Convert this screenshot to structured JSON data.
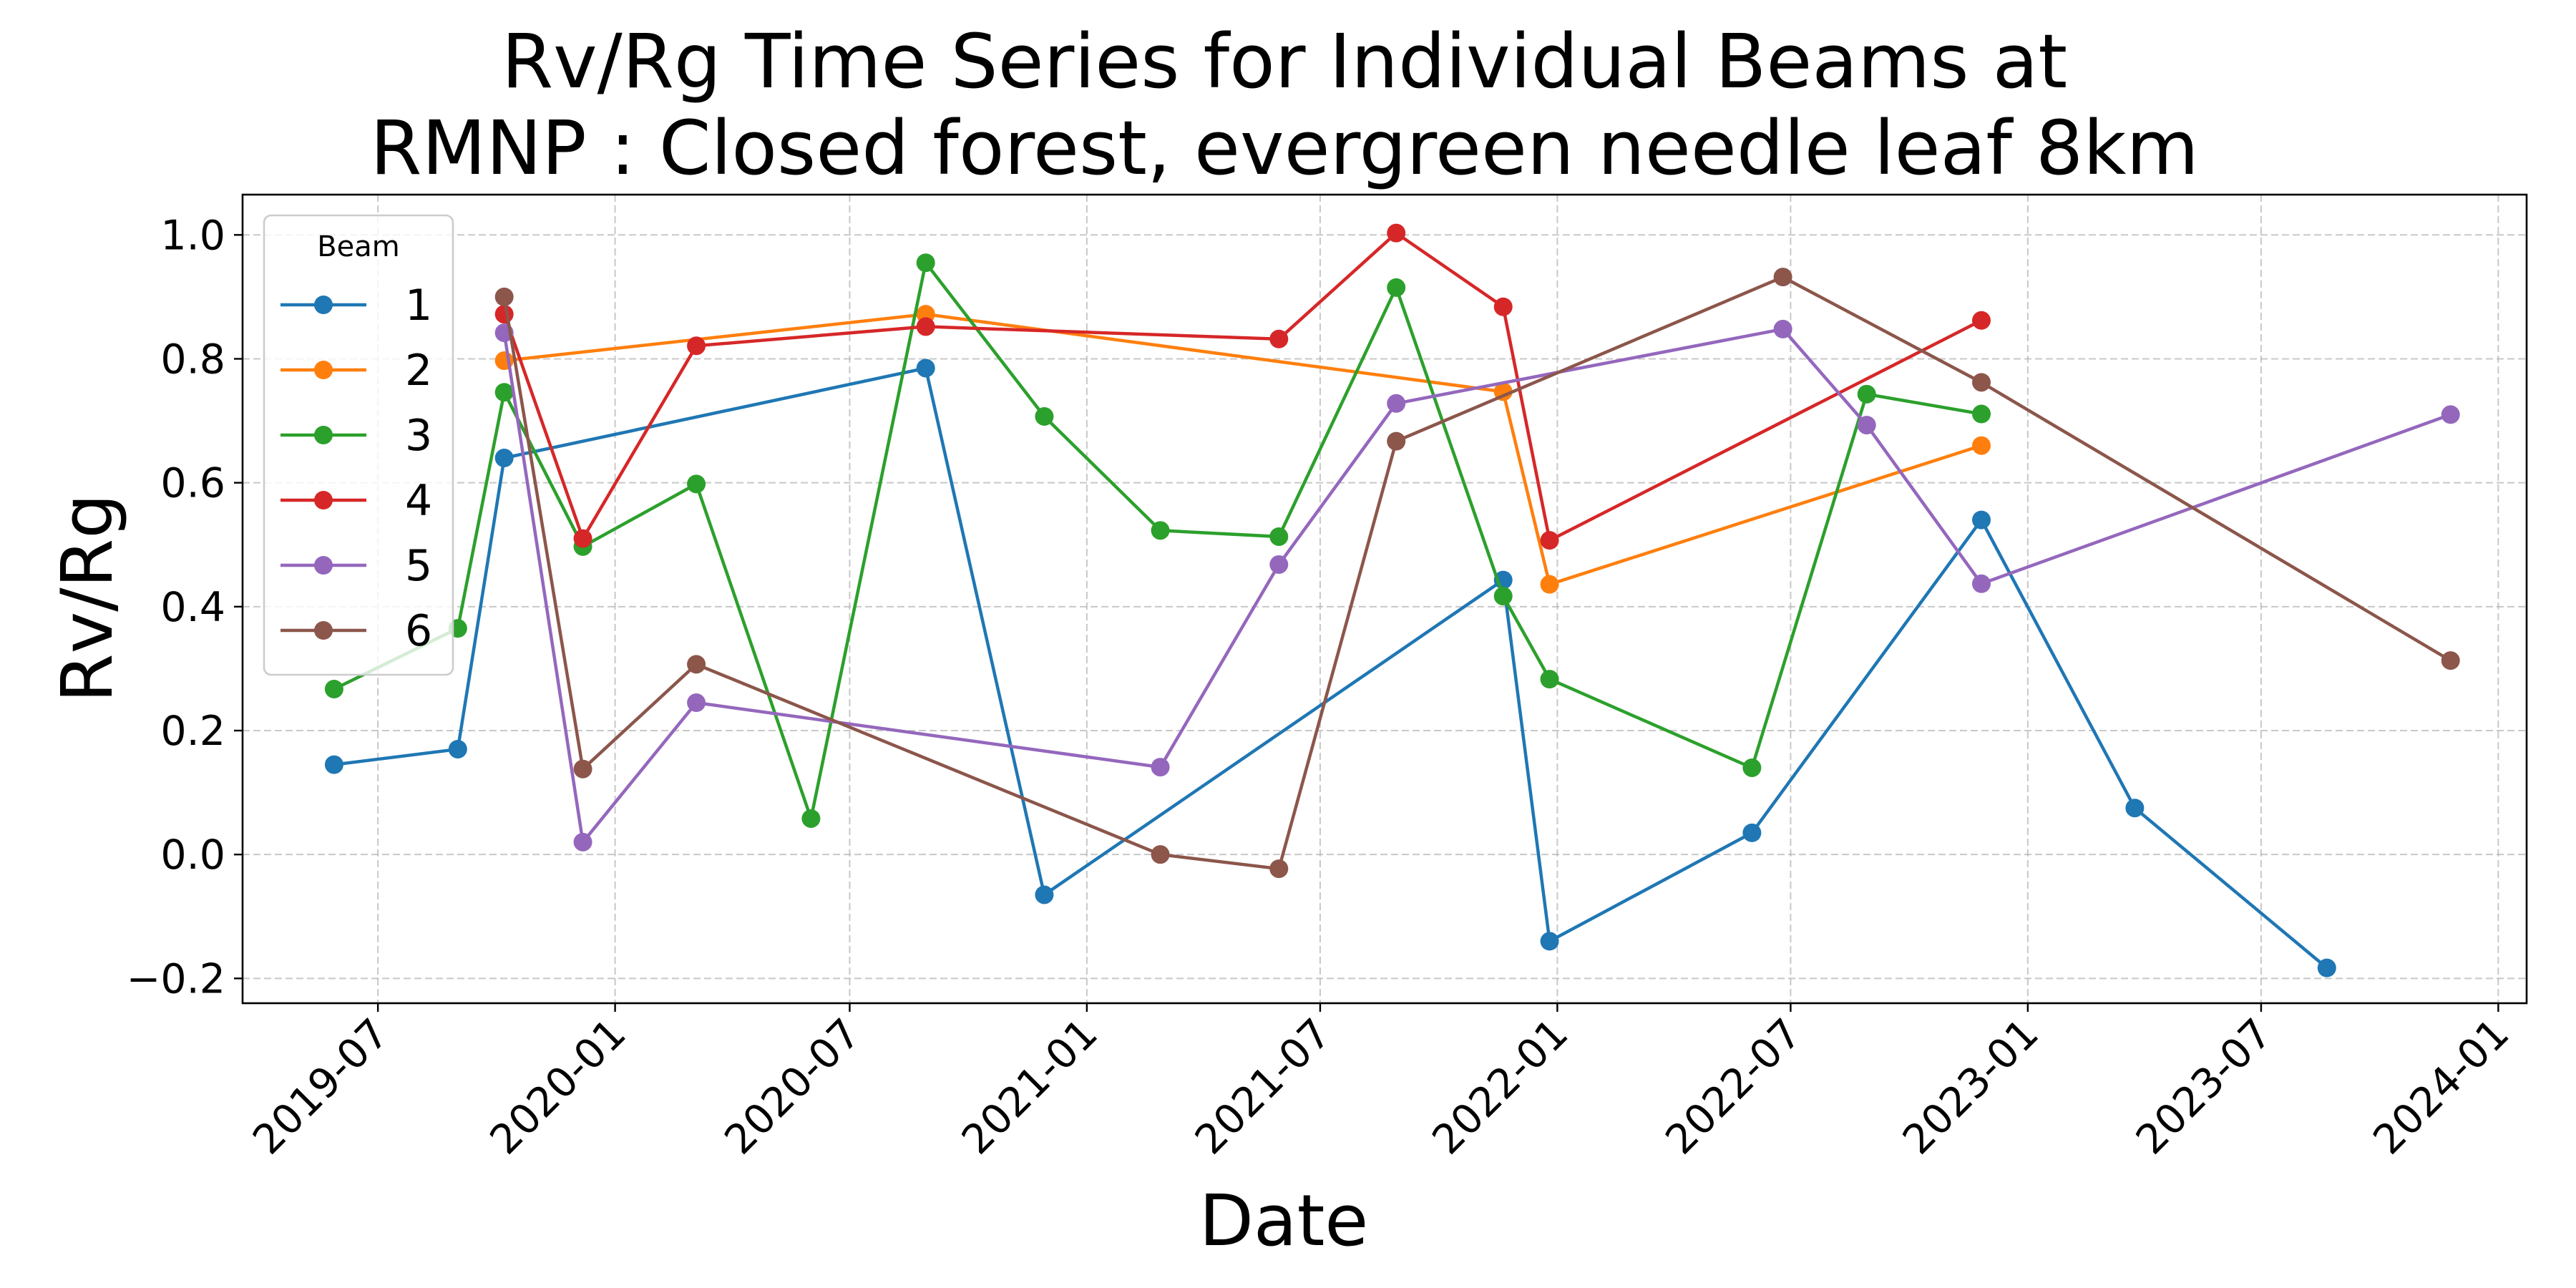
{
  "chart_data": {
    "type": "line",
    "title": "Rv/Rg Time Series for Individual Beams at\nRMNP : Closed forest, evergreen needle leaf 8km",
    "title_lines": [
      "Rv/Rg Time Series for Individual Beams at",
      "RMNP : Closed forest, evergreen needle leaf 8km"
    ],
    "xlabel": "Date",
    "ylabel": "Rv/Rg",
    "xlim": [
      "2019-03-18",
      "2024-01-23"
    ],
    "ylim": [
      -0.24,
      1.065
    ],
    "x_ticks": [
      "2019-07",
      "2020-01",
      "2020-07",
      "2021-01",
      "2021-07",
      "2022-01",
      "2022-07",
      "2023-01",
      "2023-07",
      "2024-01"
    ],
    "y_ticks": [
      -0.2,
      0.0,
      0.2,
      0.4,
      0.6,
      0.8,
      1.0
    ],
    "y_tick_labels": [
      "−0.2",
      "0.0",
      "0.2",
      "0.4",
      "0.6",
      "0.8",
      "1.0"
    ],
    "grid": true,
    "legend": {
      "title": "Beam",
      "placement": "upper left"
    },
    "series": [
      {
        "name": "1",
        "color": "#1f77b4",
        "points": [
          {
            "x": "2019-05-28",
            "y": 0.145
          },
          {
            "x": "2019-09-01",
            "y": 0.17
          },
          {
            "x": "2019-10-07",
            "y": 0.64
          },
          {
            "x": "2020-08-29",
            "y": 0.785
          },
          {
            "x": "2020-11-29",
            "y": -0.065
          },
          {
            "x": "2021-11-20",
            "y": 0.443
          },
          {
            "x": "2021-12-26",
            "y": -0.14
          },
          {
            "x": "2022-06-01",
            "y": 0.035
          },
          {
            "x": "2022-11-26",
            "y": 0.54
          },
          {
            "x": "2023-03-25",
            "y": 0.075
          },
          {
            "x": "2023-08-21",
            "y": -0.183
          }
        ]
      },
      {
        "name": "2",
        "color": "#ff7f0e",
        "points": [
          {
            "x": "2019-10-07",
            "y": 0.797
          },
          {
            "x": "2020-08-29",
            "y": 0.872
          },
          {
            "x": "2021-11-20",
            "y": 0.747
          },
          {
            "x": "2021-12-26",
            "y": 0.436
          },
          {
            "x": "2022-11-26",
            "y": 0.66
          }
        ]
      },
      {
        "name": "3",
        "color": "#2ca02c",
        "points": [
          {
            "x": "2019-05-28",
            "y": 0.267
          },
          {
            "x": "2019-09-01",
            "y": 0.365
          },
          {
            "x": "2019-10-07",
            "y": 0.746
          },
          {
            "x": "2019-12-07",
            "y": 0.497
          },
          {
            "x": "2020-03-04",
            "y": 0.598
          },
          {
            "x": "2020-06-01",
            "y": 0.058
          },
          {
            "x": "2020-08-29",
            "y": 0.955
          },
          {
            "x": "2020-11-29",
            "y": 0.707
          },
          {
            "x": "2021-02-27",
            "y": 0.523
          },
          {
            "x": "2021-05-30",
            "y": 0.513
          },
          {
            "x": "2021-08-29",
            "y": 0.915
          },
          {
            "x": "2021-11-20",
            "y": 0.417
          },
          {
            "x": "2021-12-26",
            "y": 0.283
          },
          {
            "x": "2022-06-01",
            "y": 0.14
          },
          {
            "x": "2022-08-29",
            "y": 0.743
          },
          {
            "x": "2022-11-26",
            "y": 0.711
          }
        ]
      },
      {
        "name": "4",
        "color": "#d62728",
        "points": [
          {
            "x": "2019-10-07",
            "y": 0.872
          },
          {
            "x": "2019-12-07",
            "y": 0.51
          },
          {
            "x": "2020-03-04",
            "y": 0.821
          },
          {
            "x": "2020-08-29",
            "y": 0.852
          },
          {
            "x": "2021-05-30",
            "y": 0.832
          },
          {
            "x": "2021-08-29",
            "y": 1.003
          },
          {
            "x": "2021-11-20",
            "y": 0.884
          },
          {
            "x": "2021-12-26",
            "y": 0.507
          },
          {
            "x": "2022-11-26",
            "y": 0.862
          }
        ]
      },
      {
        "name": "5",
        "color": "#9467bd",
        "points": [
          {
            "x": "2019-10-07",
            "y": 0.842
          },
          {
            "x": "2019-12-07",
            "y": 0.02
          },
          {
            "x": "2020-03-04",
            "y": 0.245
          },
          {
            "x": "2021-02-27",
            "y": 0.141
          },
          {
            "x": "2021-05-30",
            "y": 0.468
          },
          {
            "x": "2021-08-29",
            "y": 0.728
          },
          {
            "x": "2022-06-25",
            "y": 0.848
          },
          {
            "x": "2022-08-29",
            "y": 0.693
          },
          {
            "x": "2022-11-26",
            "y": 0.437
          },
          {
            "x": "2023-11-25",
            "y": 0.71
          }
        ]
      },
      {
        "name": "6",
        "color": "#8c564b",
        "points": [
          {
            "x": "2019-10-07",
            "y": 0.9
          },
          {
            "x": "2019-12-07",
            "y": 0.138
          },
          {
            "x": "2020-03-04",
            "y": 0.307
          },
          {
            "x": "2021-02-27",
            "y": 0.0
          },
          {
            "x": "2021-05-30",
            "y": -0.023
          },
          {
            "x": "2021-08-29",
            "y": 0.667
          },
          {
            "x": "2022-06-25",
            "y": 0.932
          },
          {
            "x": "2022-11-26",
            "y": 0.762
          },
          {
            "x": "2023-11-25",
            "y": 0.313
          }
        ]
      }
    ]
  }
}
